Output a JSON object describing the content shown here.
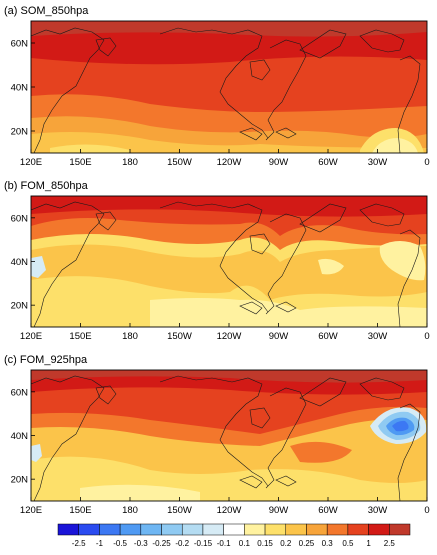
{
  "panels": [
    {
      "title": "(a)  SOM_850hpa"
    },
    {
      "title": "(b)  FOM_850hpa"
    },
    {
      "title": "(c)  FOM_925hpa"
    }
  ],
  "lon_labels": [
    "120E",
    "150E",
    "180",
    "150W",
    "120W",
    "90W",
    "60W",
    "30W",
    "0"
  ],
  "lat_labels": [
    "60N",
    "40N",
    "20N"
  ],
  "colorbar": {
    "labels": [
      "-2.5",
      "-1",
      "-0.5",
      "-0.3",
      "-0.25",
      "-0.2",
      "-0.15",
      "-0.1",
      "0.1",
      "0.15",
      "0.2",
      "0.25",
      "0.3",
      "0.5",
      "1",
      "2.5"
    ],
    "colors": [
      "#1a14d8",
      "#2a4bf0",
      "#3c78f3",
      "#4f9af3",
      "#6eb6f3",
      "#8fcaf2",
      "#b4dcf2",
      "#d6ebf5",
      "#ffffff",
      "#fff2a0",
      "#fde06a",
      "#fbc44a",
      "#f7a43a",
      "#f3772c",
      "#e5421f",
      "#d21a16",
      "#c0392b"
    ]
  },
  "colors": {
    "land_outline": "#1a1a1a",
    "background": "#ffffff"
  }
}
